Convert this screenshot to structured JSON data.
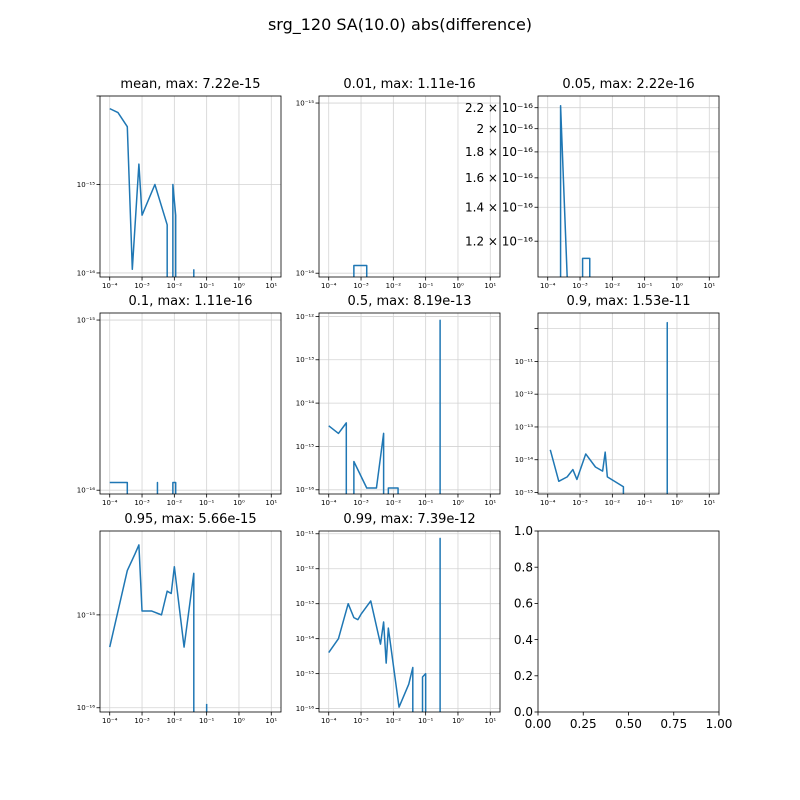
{
  "figure": {
    "title": "srg_120 SA(10.0) abs(difference)"
  },
  "colors": {
    "line": "#1f77b4",
    "grid": "#d3d3d3",
    "axes": "#000000",
    "background": "#ffffff"
  },
  "chart_data": [
    {
      "type": "line",
      "title": "mean, max:  7.22e-15",
      "xscale": "log",
      "yscale": "log",
      "xlim": [
        5e-05,
        20
      ],
      "ylim": [
        9e-17,
        1e-14
      ],
      "x_ticks": [
        "10⁻⁴",
        "10⁻³",
        "10⁻²",
        "10⁻¹",
        "10⁰",
        "10¹"
      ],
      "y_ticks": [
        "10⁻¹⁶",
        "10⁻¹⁵"
      ],
      "grid": true,
      "series": [
        {
          "segments": [
            [
              [
                0.0001,
                7.2e-15
              ],
              [
                0.00018,
                6.5e-15
              ],
              [
                0.00035,
                4.5e-15
              ],
              [
                0.0005,
                1.1e-16
              ],
              [
                0.0008,
                1.7e-15
              ],
              [
                0.001,
                4.5e-16
              ],
              [
                0.0025,
                1e-15
              ],
              [
                0.006,
                3.5e-16
              ],
              [
                0.006,
                9e-17
              ]
            ],
            [
              [
                0.009,
                9e-17
              ],
              [
                0.009,
                1e-15
              ],
              [
                0.011,
                4.5e-16
              ],
              [
                0.011,
                9e-17
              ]
            ],
            [
              [
                0.04,
                9e-17
              ],
              [
                0.04,
                1.1e-16
              ]
            ]
          ]
        }
      ]
    },
    {
      "type": "line",
      "title": "0.01, max:  1.11e-16",
      "xscale": "log",
      "yscale": "log",
      "xlim": [
        5e-05,
        20
      ],
      "ylim": [
        9.5e-17,
        1.1e-15
      ],
      "x_ticks": [
        "10⁻⁴",
        "10⁻³",
        "10⁻²",
        "10⁻¹",
        "10⁰",
        "10¹"
      ],
      "y_ticks": [
        "10⁻¹⁶",
        "10⁻¹⁵"
      ],
      "grid": true,
      "series": [
        {
          "segments": [
            [
              [
                0.0006,
                9.5e-17
              ],
              [
                0.0006,
                1.11e-16
              ],
              [
                0.0015,
                1.11e-16
              ],
              [
                0.0015,
                9.5e-17
              ]
            ]
          ]
        }
      ]
    },
    {
      "type": "line",
      "title": "0.05, max:  2.22e-16",
      "xscale": "log",
      "yscale": "log",
      "xlim": [
        5e-05,
        20
      ],
      "ylim": [
        1.02e-16,
        2.32e-16
      ],
      "x_ticks": [
        "10⁻⁴",
        "10⁻³",
        "10⁻²",
        "10⁻¹",
        "10⁰",
        "10¹"
      ],
      "y_ticks": [
        "1.2 × 10⁻¹⁶",
        "1.4 × 10⁻¹⁶",
        "1.6 × 10⁻¹⁶",
        "1.8 × 10⁻¹⁶",
        "2 × 10⁻¹⁶",
        "2.2 × 10⁻¹⁶"
      ],
      "grid": true,
      "series": [
        {
          "segments": [
            [
              [
                0.00025,
                1.02e-16
              ],
              [
                0.00025,
                2.22e-16
              ],
              [
                0.0004,
                1.02e-16
              ]
            ],
            [
              [
                0.0012,
                1.02e-16
              ],
              [
                0.0012,
                1.11e-16
              ],
              [
                0.002,
                1.11e-16
              ],
              [
                0.002,
                1.02e-16
              ]
            ]
          ]
        }
      ]
    },
    {
      "type": "line",
      "title": "0.1, max:  1.11e-16",
      "xscale": "log",
      "yscale": "log",
      "xlim": [
        5e-05,
        20
      ],
      "ylim": [
        9.5e-17,
        1.1e-15
      ],
      "x_ticks": [
        "10⁻⁴",
        "10⁻³",
        "10⁻²",
        "10⁻¹",
        "10⁰",
        "10¹"
      ],
      "y_ticks": [
        "10⁻¹⁶",
        "10⁻¹⁵"
      ],
      "grid": true,
      "series": [
        {
          "segments": [
            [
              [
                0.0001,
                1.11e-16
              ],
              [
                0.00035,
                1.11e-16
              ],
              [
                0.00035,
                9.5e-17
              ]
            ],
            [
              [
                0.003,
                9.5e-17
              ],
              [
                0.003,
                1.11e-16
              ],
              [
                0.003,
                9.5e-17
              ]
            ],
            [
              [
                0.009,
                9.5e-17
              ],
              [
                0.009,
                1.11e-16
              ],
              [
                0.011,
                1.11e-16
              ],
              [
                0.011,
                9.5e-17
              ]
            ]
          ]
        }
      ]
    },
    {
      "type": "line",
      "title": "0.5, max:  8.19e-13",
      "xscale": "log",
      "yscale": "log",
      "xlim": [
        5e-05,
        20
      ],
      "ylim": [
        8e-17,
        1.2e-12
      ],
      "x_ticks": [
        "10⁻⁴",
        "10⁻³",
        "10⁻²",
        "10⁻¹",
        "10⁰",
        "10¹"
      ],
      "y_ticks": [
        "10⁻¹⁶",
        "10⁻¹⁵",
        "10⁻¹⁴",
        "10⁻¹³",
        "10⁻¹²"
      ],
      "grid": true,
      "series": [
        {
          "segments": [
            [
              [
                0.0001,
                3e-15
              ],
              [
                0.0002,
                2e-15
              ],
              [
                0.00035,
                3.5e-15
              ],
              [
                0.00035,
                8e-17
              ]
            ],
            [
              [
                0.0006,
                8e-17
              ],
              [
                0.0006,
                4.5e-16
              ],
              [
                0.0015,
                1.1e-16
              ],
              [
                0.003,
                1.1e-16
              ],
              [
                0.005,
                2e-15
              ],
              [
                0.005,
                8e-17
              ]
            ],
            [
              [
                0.007,
                8e-17
              ],
              [
                0.007,
                1.1e-16
              ],
              [
                0.014,
                1.1e-16
              ],
              [
                0.014,
                8e-17
              ]
            ],
            [
              [
                0.28,
                8e-17
              ],
              [
                0.28,
                8.19e-13
              ],
              [
                0.28,
                8e-17
              ]
            ]
          ]
        }
      ]
    },
    {
      "type": "line",
      "title": "0.9, max:  1.53e-11",
      "xscale": "log",
      "yscale": "log",
      "xlim": [
        5e-05,
        20
      ],
      "ylim": [
        9e-17,
        3e-11
      ],
      "x_ticks": [
        "10⁻⁴",
        "10⁻³",
        "10⁻²",
        "10⁻¹",
        "10⁰",
        "10¹"
      ],
      "y_ticks": [
        "10⁻¹⁵",
        "10⁻¹⁴",
        "10⁻¹³",
        "10⁻¹²",
        "10⁻¹¹"
      ],
      "grid": true,
      "series": [
        {
          "segments": [
            [
              [
                0.00012,
                2e-15
              ],
              [
                0.00022,
                2.2e-16
              ],
              [
                0.0004,
                3e-16
              ],
              [
                0.0006,
                5e-16
              ],
              [
                0.0008,
                2.5e-16
              ],
              [
                0.0015,
                1.5e-15
              ],
              [
                0.003,
                6e-16
              ],
              [
                0.005,
                4.5e-16
              ],
              [
                0.006,
                1.7e-15
              ],
              [
                0.007,
                3e-16
              ],
              [
                0.022,
                1.5e-16
              ],
              [
                0.022,
                9e-17
              ]
            ],
            [
              [
                0.5,
                9e-17
              ],
              [
                0.5,
                1.53e-11
              ],
              [
                0.5,
                9e-17
              ]
            ]
          ]
        }
      ]
    },
    {
      "type": "line",
      "title": "0.95, max:  5.66e-15",
      "xscale": "log",
      "yscale": "log",
      "xlim": [
        5e-05,
        20
      ],
      "ylim": [
        9e-17,
        8e-15
      ],
      "x_ticks": [
        "10⁻⁴",
        "10⁻³",
        "10⁻²",
        "10⁻¹",
        "10⁰",
        "10¹"
      ],
      "y_ticks": [
        "10⁻¹⁶",
        "10⁻¹⁵"
      ],
      "grid": true,
      "series": [
        {
          "segments": [
            [
              [
                0.0001,
                4.5e-16
              ],
              [
                0.00035,
                3e-15
              ],
              [
                0.0006,
                4.5e-15
              ],
              [
                0.0008,
                5.66e-15
              ],
              [
                0.001,
                1.1e-15
              ],
              [
                0.002,
                1.1e-15
              ],
              [
                0.004,
                1e-15
              ],
              [
                0.006,
                1.8e-15
              ],
              [
                0.008,
                1.7e-15
              ],
              [
                0.01,
                3.3e-15
              ],
              [
                0.02,
                4.5e-16
              ],
              [
                0.04,
                2.8e-15
              ],
              [
                0.04,
                9e-17
              ]
            ],
            [
              [
                0.1,
                9e-17
              ],
              [
                0.1,
                1.1e-16
              ]
            ]
          ]
        }
      ]
    },
    {
      "type": "line",
      "title": "0.99, max:  7.39e-12",
      "xscale": "log",
      "yscale": "log",
      "xlim": [
        5e-05,
        20
      ],
      "ylim": [
        8e-17,
        1.2e-11
      ],
      "x_ticks": [
        "10⁻⁴",
        "10⁻³",
        "10⁻²",
        "10⁻¹",
        "10⁰",
        "10¹"
      ],
      "y_ticks": [
        "10⁻¹⁶",
        "10⁻¹⁵",
        "10⁻¹⁴",
        "10⁻¹³",
        "10⁻¹²",
        "10⁻¹¹"
      ],
      "grid": true,
      "series": [
        {
          "segments": [
            [
              [
                0.0001,
                4e-15
              ],
              [
                0.0002,
                1e-14
              ],
              [
                0.0004,
                1e-13
              ],
              [
                0.0006,
                4e-14
              ],
              [
                0.0008,
                3.5e-14
              ],
              [
                0.001,
                5e-14
              ],
              [
                0.002,
                1.2e-13
              ],
              [
                0.004,
                7e-15
              ],
              [
                0.005,
                3e-14
              ],
              [
                0.006,
                2e-15
              ],
              [
                0.007,
                2e-14
              ],
              [
                0.015,
                1.1e-16
              ],
              [
                0.03,
                5e-16
              ],
              [
                0.04,
                1.5e-15
              ],
              [
                0.04,
                8e-17
              ]
            ],
            [
              [
                0.08,
                8e-17
              ],
              [
                0.08,
                8e-16
              ],
              [
                0.1,
                1e-15
              ],
              [
                0.1,
                8e-17
              ]
            ],
            [
              [
                0.28,
                8e-17
              ],
              [
                0.28,
                7.39e-12
              ],
              [
                0.28,
                8e-17
              ]
            ]
          ]
        }
      ]
    },
    {
      "type": "line",
      "title": "",
      "xscale": "linear",
      "yscale": "linear",
      "xlim": [
        0,
        1
      ],
      "ylim": [
        0,
        1
      ],
      "x_ticks": [
        "0.00",
        "0.25",
        "0.50",
        "0.75",
        "1.00"
      ],
      "x_tick_values": [
        0,
        0.25,
        0.5,
        0.75,
        1
      ],
      "y_ticks": [
        "0.0",
        "0.2",
        "0.4",
        "0.6",
        "0.8",
        "1.0"
      ],
      "y_tick_values": [
        0,
        0.2,
        0.4,
        0.6,
        0.8,
        1
      ],
      "grid": false,
      "series": []
    }
  ]
}
